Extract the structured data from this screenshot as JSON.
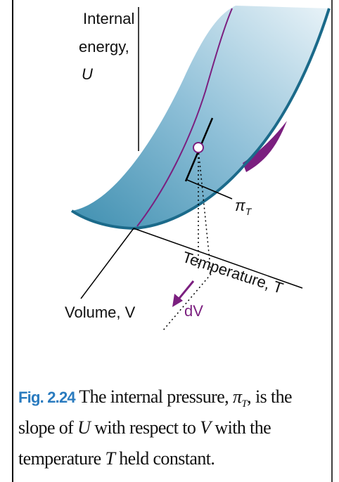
{
  "labels": {
    "internal_energy": [
      "Internal",
      "energy,",
      "U"
    ],
    "pi_symbol": "π",
    "pi_subscript": "T",
    "temperature": "Temperature, T",
    "volume": "Volume, V",
    "dv": "dV"
  },
  "caption": {
    "number": "Fig. 2.24",
    "line1": [
      "The internal pressure, ",
      "π",
      "T",
      ", is the"
    ],
    "line2": [
      "slope of ",
      "U",
      " with respect to ",
      "V",
      " with the"
    ],
    "line3": [
      "temperature ",
      "T",
      " held constant."
    ]
  }
}
